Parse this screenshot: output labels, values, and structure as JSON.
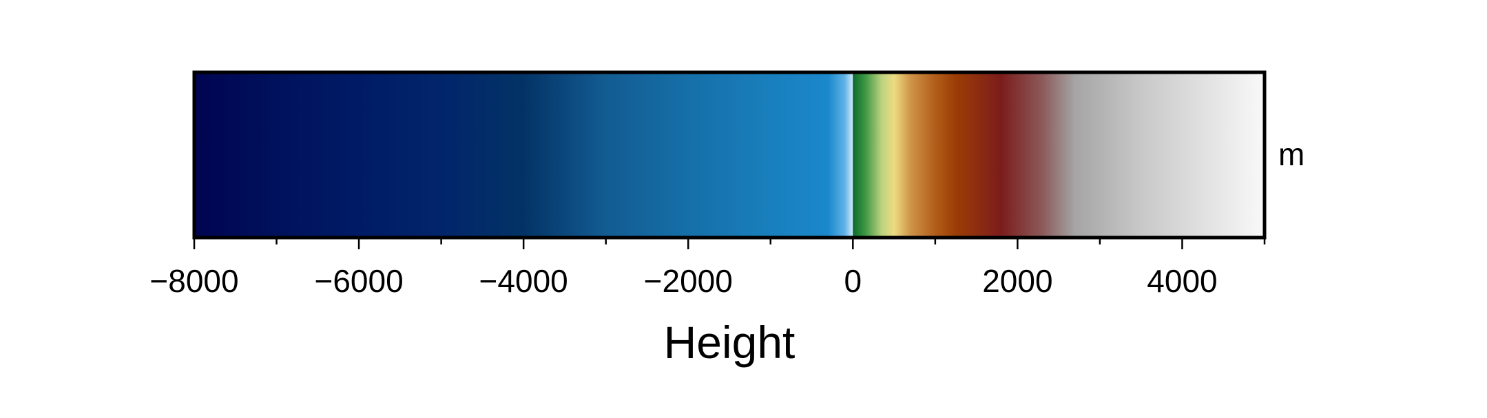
{
  "chart_data": {
    "type": "colorbar",
    "orientation": "horizontal",
    "xlabel": "Height",
    "unit": "m",
    "xlim": [
      -8000,
      5000
    ],
    "major_ticks": [
      -8000,
      -6000,
      -4000,
      -2000,
      0,
      2000,
      4000
    ],
    "major_tick_labels": [
      "−8000",
      "−6000",
      "−4000",
      "−2000",
      "0",
      "2000",
      "4000"
    ],
    "minor_ticks": [
      -7000,
      -5000,
      -3000,
      -1000,
      1000,
      3000,
      5000
    ],
    "colormap_stops": [
      {
        "value": -8000,
        "color": "#000451"
      },
      {
        "value": -7000,
        "color": "#00115c"
      },
      {
        "value": -6000,
        "color": "#001b66"
      },
      {
        "value": -5000,
        "color": "#01256a"
      },
      {
        "value": -4000,
        "color": "#033366"
      },
      {
        "value": -3000,
        "color": "#125c92"
      },
      {
        "value": -2000,
        "color": "#166fa8"
      },
      {
        "value": -1000,
        "color": "#197fbd"
      },
      {
        "value": -300,
        "color": "#1a88cb"
      },
      {
        "value": -100,
        "color": "#5fb2e6"
      },
      {
        "value": -1,
        "color": "#cfeafb"
      },
      {
        "value": 0,
        "color": "#0c6a2c"
      },
      {
        "value": 150,
        "color": "#3d9743"
      },
      {
        "value": 350,
        "color": "#bcd27f"
      },
      {
        "value": 500,
        "color": "#ecdc82"
      },
      {
        "value": 700,
        "color": "#cf9448"
      },
      {
        "value": 1000,
        "color": "#b25d1a"
      },
      {
        "value": 1250,
        "color": "#9b3d05"
      },
      {
        "value": 1800,
        "color": "#7c1c1c"
      },
      {
        "value": 2300,
        "color": "#8c5a5a"
      },
      {
        "value": 2700,
        "color": "#a5a5a5"
      },
      {
        "value": 3500,
        "color": "#c8c8c8"
      },
      {
        "value": 5000,
        "color": "#f9f9f9"
      }
    ]
  }
}
